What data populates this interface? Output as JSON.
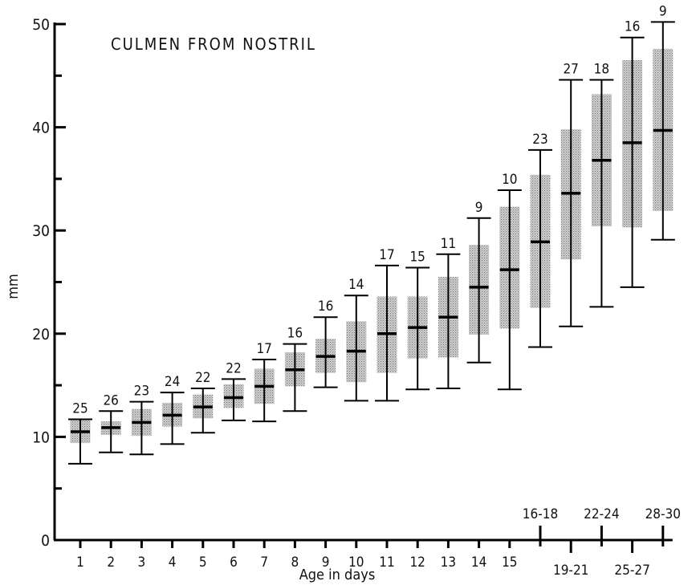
{
  "chart_data": {
    "type": "box",
    "title": "CULMEN FROM NOSTRIL",
    "xlabel": "Age in days",
    "ylabel": "mm",
    "ylim": [
      0,
      50
    ],
    "yticks": [
      0,
      10,
      20,
      30,
      40,
      50
    ],
    "grid": false,
    "legend": "none",
    "fill": "stippled grey",
    "categories": [
      "1",
      "2",
      "3",
      "4",
      "5",
      "6",
      "7",
      "8",
      "9",
      "10",
      "11",
      "12",
      "13",
      "14",
      "15",
      "16-18",
      "19-21",
      "22-24",
      "25-27",
      "28-30"
    ],
    "sample_size": [
      25,
      26,
      23,
      24,
      22,
      22,
      17,
      16,
      16,
      14,
      17,
      15,
      11,
      9,
      10,
      23,
      27,
      18,
      16,
      9
    ],
    "mean": [
      10.5,
      10.9,
      11.4,
      12.1,
      12.9,
      13.8,
      14.9,
      16.5,
      17.8,
      18.3,
      20.0,
      20.6,
      21.6,
      24.5,
      26.2,
      28.9,
      33.6,
      36.8,
      38.5,
      39.7
    ],
    "sd_low": [
      9.4,
      10.2,
      10.1,
      11.0,
      11.8,
      12.8,
      13.2,
      14.9,
      16.2,
      15.3,
      16.2,
      17.6,
      17.7,
      19.9,
      20.5,
      22.5,
      27.2,
      30.4,
      30.3,
      31.9
    ],
    "sd_high": [
      11.7,
      11.5,
      12.7,
      13.3,
      14.1,
      15.1,
      16.6,
      18.2,
      19.5,
      21.2,
      23.6,
      23.6,
      25.5,
      28.6,
      32.3,
      35.4,
      39.8,
      43.2,
      46.5,
      47.6
    ],
    "min": [
      7.4,
      8.5,
      8.3,
      9.3,
      10.4,
      11.6,
      11.5,
      12.5,
      14.8,
      13.5,
      13.5,
      14.6,
      14.7,
      17.2,
      14.6,
      18.7,
      20.7,
      22.6,
      24.5,
      29.1
    ],
    "max": [
      11.7,
      12.5,
      13.4,
      14.3,
      14.7,
      15.6,
      17.5,
      19.0,
      21.6,
      23.7,
      26.6,
      26.4,
      27.7,
      31.2,
      33.9,
      37.8,
      44.6,
      44.6,
      48.7,
      50.2
    ]
  }
}
